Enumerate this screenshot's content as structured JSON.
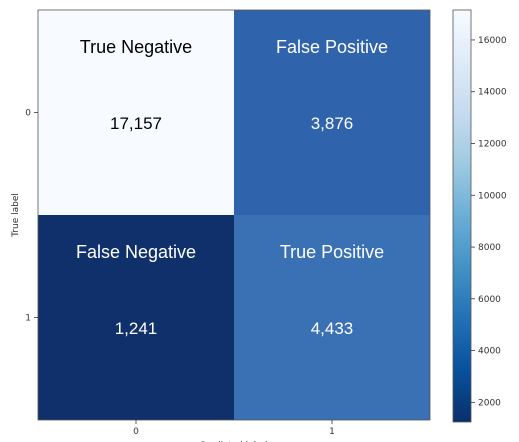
{
  "chart_data": {
    "type": "heatmap",
    "title": "",
    "xlabel": "Predicted label",
    "ylabel": "True label",
    "x_categories": [
      "0",
      "1"
    ],
    "y_categories": [
      "0",
      "1"
    ],
    "cells": [
      {
        "row": 0,
        "col": 0,
        "title": "True Negative",
        "value": 17157,
        "label": "17,157",
        "color": "#f7fbff",
        "text_color": "#000000"
      },
      {
        "row": 0,
        "col": 1,
        "title": "False Positive",
        "value": 3876,
        "label": "3,876",
        "color": "#2f63ac",
        "text_color": "#ffffff"
      },
      {
        "row": 1,
        "col": 0,
        "title": "False Negative",
        "value": 1241,
        "label": "1,241",
        "color": "#10306b",
        "text_color": "#ffffff"
      },
      {
        "row": 1,
        "col": 1,
        "title": "True Positive",
        "value": 4433,
        "label": "4,433",
        "color": "#3a71b5",
        "text_color": "#ffffff"
      }
    ],
    "colorbar": {
      "colormap": "Blues",
      "min": 1241,
      "max": 17157,
      "ticks": [
        2000,
        4000,
        6000,
        8000,
        10000,
        12000,
        14000,
        16000
      ],
      "tick_labels": [
        "2000",
        "4000",
        "6000",
        "8000",
        "10000",
        "12000",
        "14000",
        "16000"
      ]
    }
  }
}
